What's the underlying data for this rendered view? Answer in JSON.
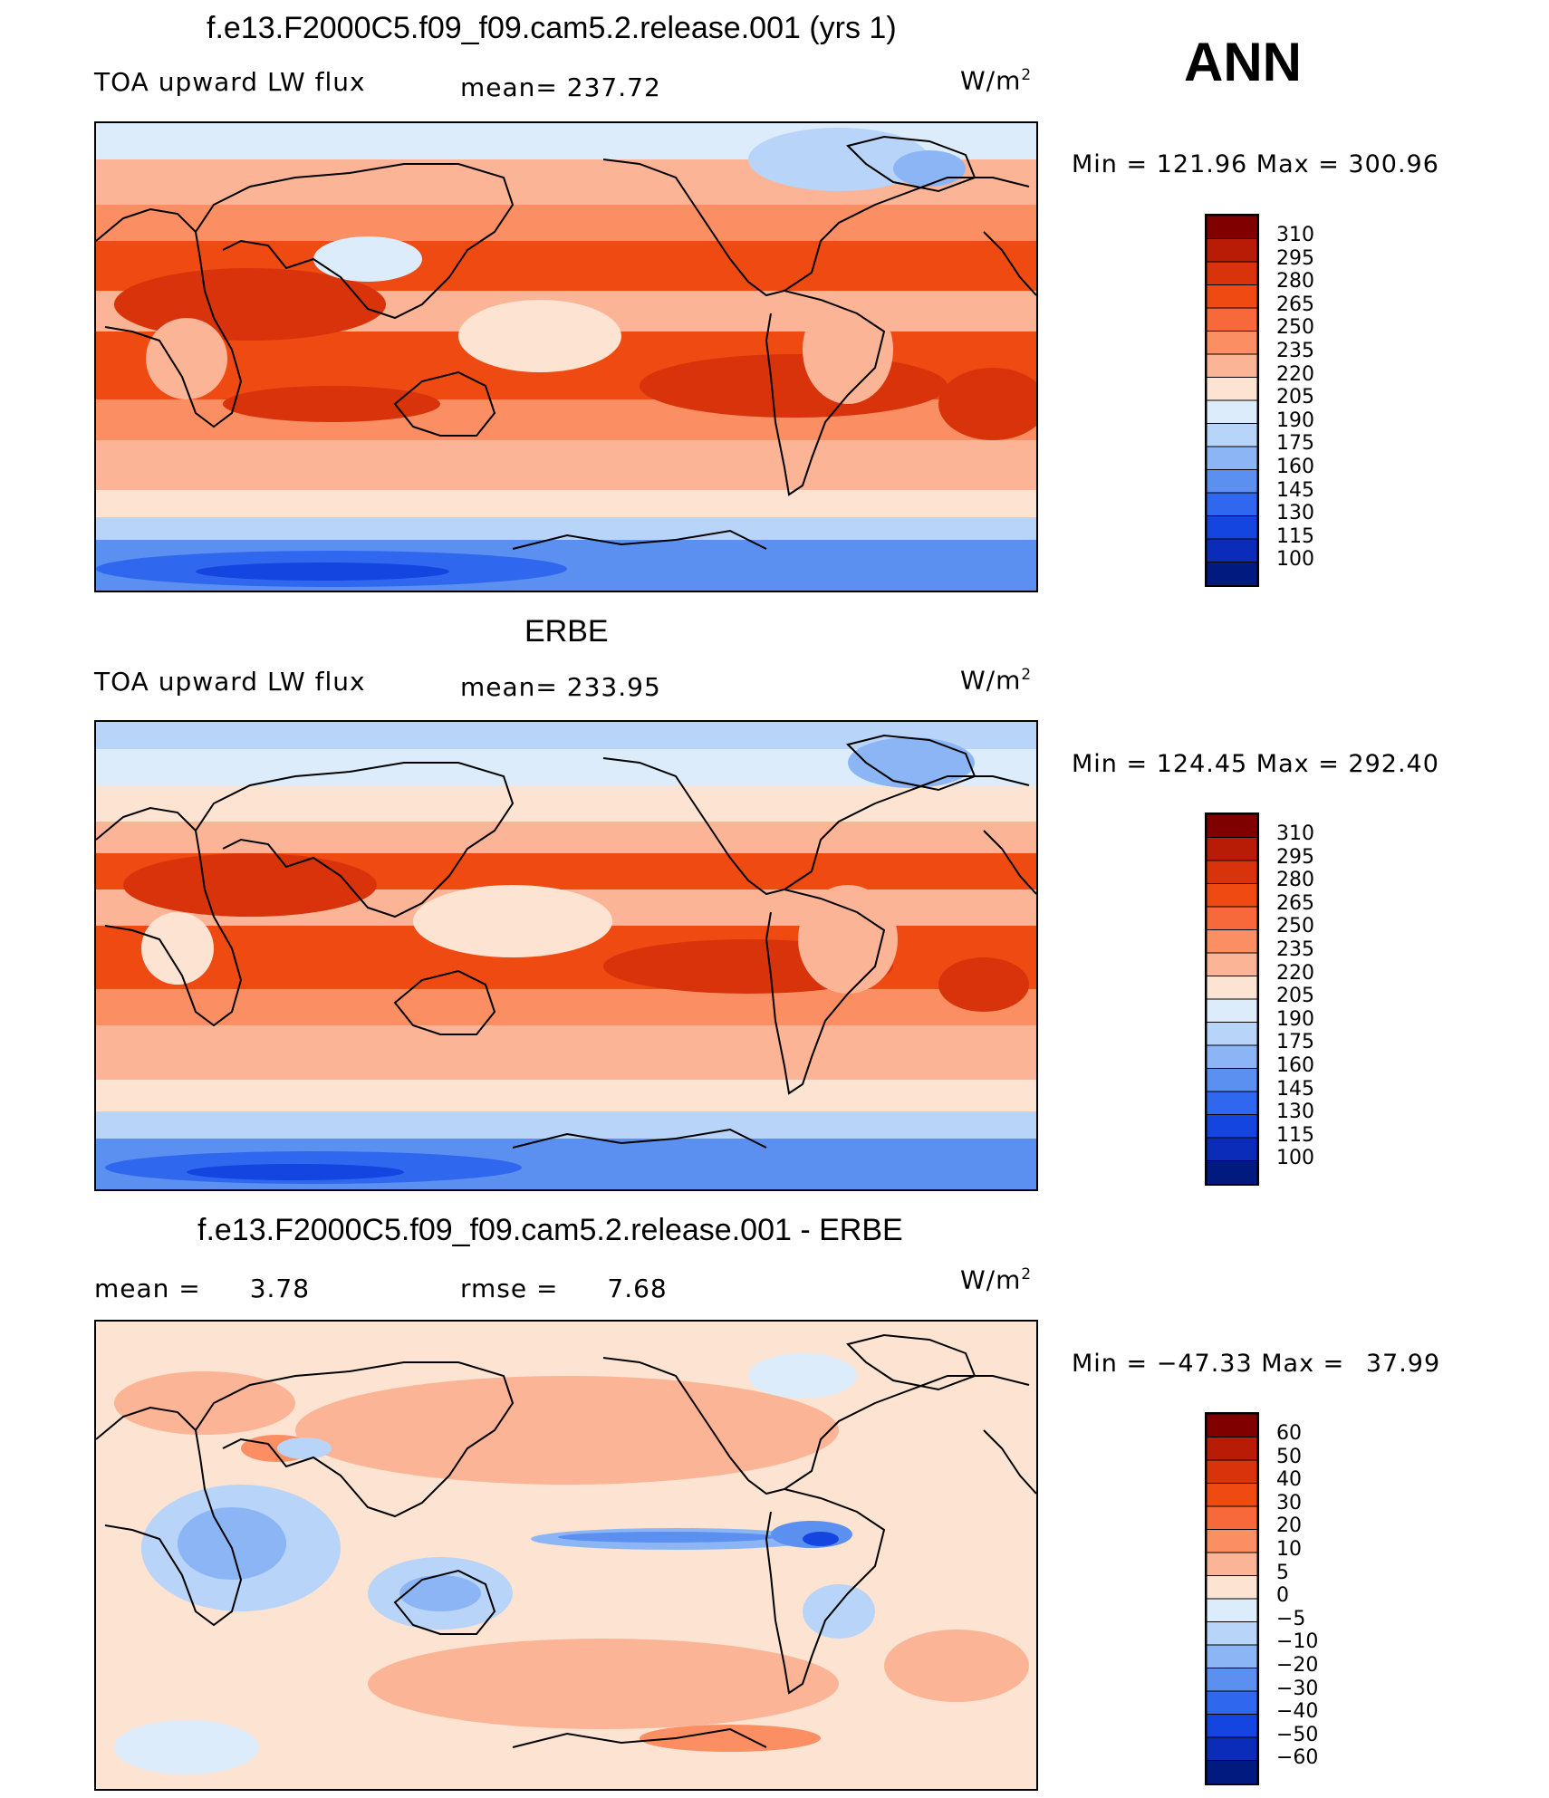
{
  "season": "ANN",
  "units_main": "W/m",
  "units_sup": "2",
  "panels": [
    {
      "title": "f.e13.F2000C5.f09_f09.cam5.2.release.001 (yrs 1)",
      "variable": "TOA upward LW flux",
      "mean_label": "mean=",
      "mean_value": "237.72",
      "min_label": "Min =",
      "min_value": "121.96",
      "max_label": "Max =",
      "max_value": "300.96",
      "colorbar": "abs"
    },
    {
      "title": "ERBE",
      "variable": "TOA upward LW flux",
      "mean_label": "mean=",
      "mean_value": "233.95",
      "min_label": "Min =",
      "min_value": "124.45",
      "max_label": "Max =",
      "max_value": "292.40",
      "colorbar": "abs"
    },
    {
      "title": "f.e13.F2000C5.f09_f09.cam5.2.release.001 - ERBE",
      "mean_label": "mean =",
      "mean_value": "3.78",
      "rmse_label": "rmse =",
      "rmse_value": "7.68",
      "min_label": "Min =",
      "min_value": "−47.33",
      "max_label": "Max =",
      "max_value": "37.99",
      "colorbar": "diff"
    }
  ],
  "chart_data": [
    {
      "type": "heatmap",
      "title": "f.e13.F2000C5.f09_f09.cam5.2.release.001 (yrs 1)",
      "field": "TOA upward LW flux",
      "units": "W/m2",
      "mean": 237.72,
      "min": 121.96,
      "max": 300.96,
      "levels": [
        100,
        115,
        130,
        145,
        160,
        175,
        190,
        205,
        220,
        235,
        250,
        265,
        280,
        295,
        310
      ]
    },
    {
      "type": "heatmap",
      "title": "ERBE",
      "field": "TOA upward LW flux",
      "units": "W/m2",
      "mean": 233.95,
      "min": 124.45,
      "max": 292.4,
      "levels": [
        100,
        115,
        130,
        145,
        160,
        175,
        190,
        205,
        220,
        235,
        250,
        265,
        280,
        295,
        310
      ]
    },
    {
      "type": "heatmap",
      "title": "f.e13.F2000C5.f09_f09.cam5.2.release.001 - ERBE",
      "field": "difference",
      "units": "W/m2",
      "mean": 3.78,
      "rmse": 7.68,
      "min": -47.33,
      "max": 37.99,
      "levels": [
        -60,
        -50,
        -40,
        -30,
        -20,
        -10,
        -5,
        0,
        5,
        10,
        20,
        30,
        40,
        50,
        60
      ]
    }
  ],
  "colorbars": {
    "abs": {
      "labels": [
        "310",
        "295",
        "280",
        "265",
        "250",
        "235",
        "220",
        "205",
        "190",
        "175",
        "160",
        "145",
        "130",
        "115",
        "100"
      ],
      "colors": [
        "#800000",
        "#b81c06",
        "#d8330a",
        "#ef4a12",
        "#f7693a",
        "#fb8e62",
        "#fcb496",
        "#fde4d2",
        "#dcecfb",
        "#b8d4f8",
        "#8bb5f4",
        "#5b8ff0",
        "#2f68ee",
        "#1545e0",
        "#0a2cb8",
        "#001a80"
      ]
    },
    "diff": {
      "labels": [
        "60",
        "50",
        "40",
        "30",
        "20",
        "10",
        "5",
        "0",
        "−5",
        "−10",
        "−20",
        "−30",
        "−40",
        "−50",
        "−60"
      ],
      "colors": [
        "#800000",
        "#b81c06",
        "#d8330a",
        "#ef4a12",
        "#f7693a",
        "#fb8e62",
        "#fcb496",
        "#fde4d2",
        "#dcecfb",
        "#b8d4f8",
        "#8bb5f4",
        "#5b8ff0",
        "#2f68ee",
        "#1545e0",
        "#0a2cb8",
        "#001a80"
      ]
    }
  }
}
